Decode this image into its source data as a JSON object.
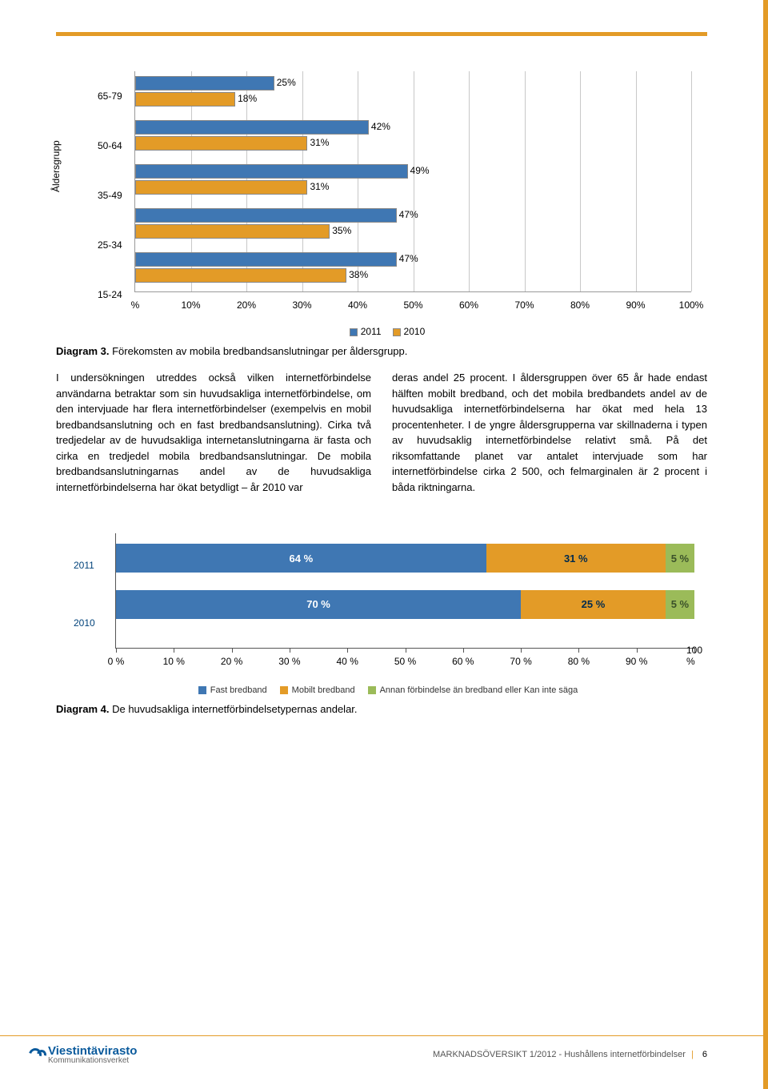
{
  "page": {
    "accent_color": "#e39b27",
    "rule_color": "#e39b27",
    "number": "6"
  },
  "chart1": {
    "type": "grouped_horizontal_bar",
    "ylabel": "Åldersgrupp",
    "categories": [
      "65-79",
      "50-64",
      "35-49",
      "25-34",
      "15-24"
    ],
    "series": [
      {
        "name": "2011",
        "color": "#3f77b3",
        "values": [
          25,
          42,
          49,
          47,
          47
        ]
      },
      {
        "name": "2010",
        "color": "#e39b27",
        "values": [
          18,
          31,
          31,
          35,
          38
        ]
      }
    ],
    "xaxis": {
      "min": 0,
      "max": 100,
      "step": 10,
      "suffix": "%"
    },
    "grid_color": "#c8c8c8",
    "label_fontsize": 12
  },
  "caption1_bold": "Diagram 3.",
  "caption1_rest": " Förekomsten av mobila bredbandsanslutningar per åldersgrupp.",
  "body": {
    "left": "I undersökningen utreddes också vilken internetförbindelse användarna betraktar som sin huvudsakliga internetförbindelse, om den intervjuade har flera internetförbindelser (exempelvis en mobil bredbandsanslutning och en fast bredbandsanslutning). Cirka två tredjedelar av de huvudsakliga internetanslutningarna är fasta och cirka en tredjedel mobila bredbandsanslutningar. De mobila bredbandsanslutningarnas andel av de huvudsakliga internetförbindelserna har ökat betydligt – år 2010 var",
    "right": "deras andel 25 procent. I åldersgruppen över 65 år hade endast hälften mobilt bredband, och det mobila bredbandets andel av de huvudsakliga internetförbindelserna har ökat med hela 13 procentenheter. I de yngre åldersgrupperna var skillnaderna i typen av huvudsaklig internetförbindelse relativt små. På det riksomfattande planet var antalet intervjuade som har internetförbindelse cirka 2 500, och felmarginalen är 2 procent i båda riktningarna."
  },
  "chart2": {
    "type": "stacked_horizontal_bar",
    "rows": [
      {
        "label": "2011",
        "segments": [
          {
            "value": 64,
            "color": "#3f77b3",
            "text_color": "#ffffff",
            "label": "64 %"
          },
          {
            "value": 31,
            "color": "#e39b27",
            "text_color": "#002b4e",
            "label": "31 %"
          },
          {
            "value": 5,
            "color": "#9bbb59",
            "text_color": "#3b512a",
            "label": "5 %"
          }
        ]
      },
      {
        "label": "2010",
        "segments": [
          {
            "value": 70,
            "color": "#3f77b3",
            "text_color": "#ffffff",
            "label": "70 %"
          },
          {
            "value": 25,
            "color": "#e39b27",
            "text_color": "#002b4e",
            "label": "25 %"
          },
          {
            "value": 5,
            "color": "#9bbb59",
            "text_color": "#3b512a",
            "label": "5 %"
          }
        ]
      }
    ],
    "xaxis": {
      "min": 0,
      "max": 100,
      "step": 10,
      "suffix": " %"
    },
    "legend": [
      {
        "label": "Fast bredband",
        "color": "#3f77b3"
      },
      {
        "label": "Mobilt bredband",
        "color": "#e39b27"
      },
      {
        "label": "Annan förbindelse än bredband eller Kan inte säga",
        "color": "#9bbb59"
      }
    ]
  },
  "caption2_bold": "Diagram 4.",
  "caption2_rest": " De huvudsakliga internetförbindelsetypernas andelar.",
  "footer": {
    "brand_top": "Viestintävirasto",
    "brand_bottom": "Kommunikationsverket",
    "brand_color": "#0a5a9c",
    "doc_title": "MARKNADSÖVERSIKT 1/2012 - Hushållens internetförbindelser"
  }
}
